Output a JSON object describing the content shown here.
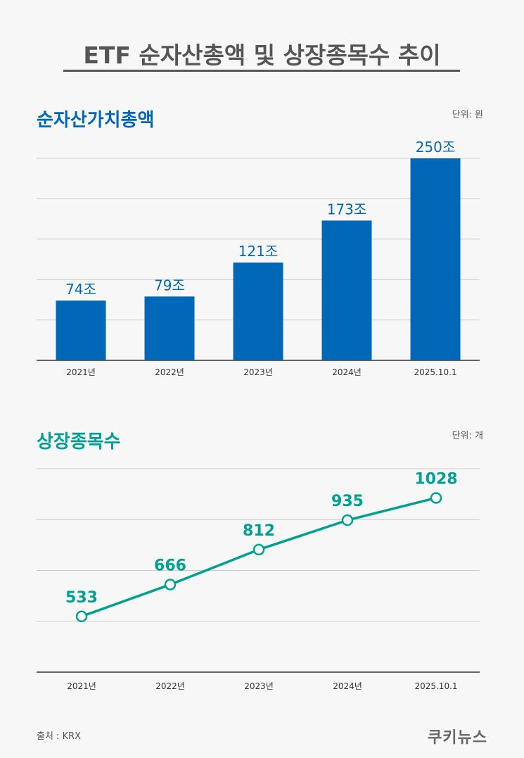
{
  "title": "ETF 순자산총액 및 상장종목수 추이",
  "colors": {
    "bar": "#0068b7",
    "line": "#00a092",
    "grid": "#cccccc",
    "axis": "#333333"
  },
  "chart_data": [
    {
      "type": "bar",
      "title": "순자산가치총액",
      "unit_label": "단위: 원",
      "categories": [
        "2021년",
        "2022년",
        "2023년",
        "2024년",
        "2025.10.1"
      ],
      "values": [
        74,
        79,
        121,
        173,
        250
      ],
      "value_labels": [
        "74조",
        "79조",
        "121조",
        "173조",
        "250조"
      ],
      "ylim": [
        0,
        250
      ],
      "grid": true
    },
    {
      "type": "line",
      "title": "상장종목수",
      "unit_label": "단위: 개",
      "categories": [
        "2021년",
        "2022년",
        "2023년",
        "2024년",
        "2025.10.1"
      ],
      "values": [
        533,
        666,
        812,
        935,
        1028
      ],
      "value_labels": [
        "533",
        "666",
        "812",
        "935",
        "1028"
      ],
      "ylim": [
        300,
        1150
      ],
      "grid": true
    }
  ],
  "footer": {
    "source": "출처 : KRX",
    "brand": "쿠키뉴스"
  }
}
